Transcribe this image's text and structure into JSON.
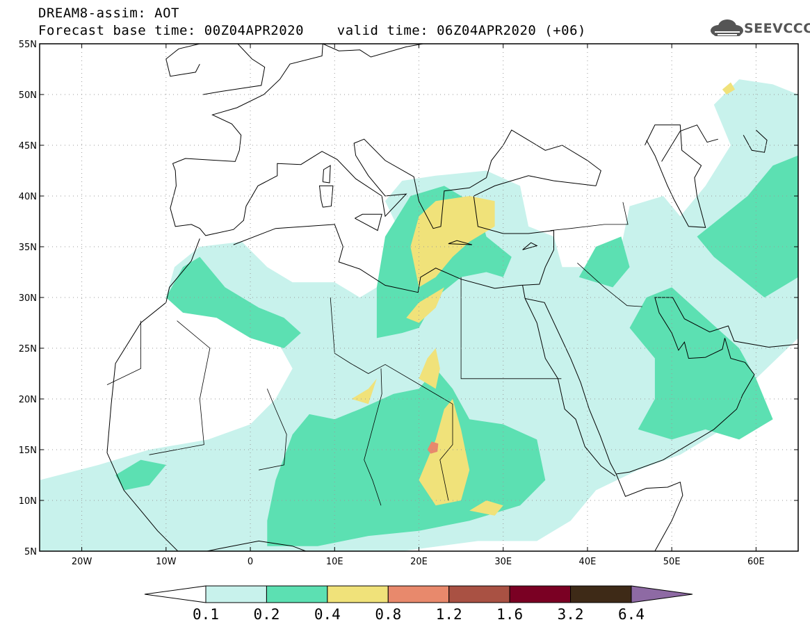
{
  "header": {
    "line1": "DREAM8-assim: AOT",
    "line2": "Forecast base time: 00Z04APR2020    valid time: 06Z04APR2020 (+06)"
  },
  "logo": {
    "text": "SEEVCCC",
    "icon": "cloud-logo-icon",
    "color": "#555555"
  },
  "map": {
    "lon_range": [
      -25,
      65
    ],
    "lat_range": [
      5,
      55
    ],
    "lon_ticks": [
      {
        "value": -20,
        "label": "20W"
      },
      {
        "value": -10,
        "label": "10W"
      },
      {
        "value": 0,
        "label": "0"
      },
      {
        "value": 10,
        "label": "10E"
      },
      {
        "value": 20,
        "label": "20E"
      },
      {
        "value": 30,
        "label": "30E"
      },
      {
        "value": 40,
        "label": "40E"
      },
      {
        "value": 50,
        "label": "50E"
      },
      {
        "value": 60,
        "label": "60E"
      }
    ],
    "lat_ticks": [
      {
        "value": 5,
        "label": "5N"
      },
      {
        "value": 10,
        "label": "10N"
      },
      {
        "value": 15,
        "label": "15N"
      },
      {
        "value": 20,
        "label": "20N"
      },
      {
        "value": 25,
        "label": "25N"
      },
      {
        "value": 30,
        "label": "30N"
      },
      {
        "value": 35,
        "label": "35N"
      },
      {
        "value": 40,
        "label": "40N"
      },
      {
        "value": 45,
        "label": "45N"
      },
      {
        "value": 50,
        "label": "50N"
      },
      {
        "value": 55,
        "label": "55N"
      }
    ],
    "grid": "dotted",
    "fields": [
      {
        "level": "0.1-0.2",
        "color": "#c8f2ec",
        "polys": [
          [
            [
              -25,
              12
            ],
            [
              -18,
              13.5
            ],
            [
              -12,
              15
            ],
            [
              -5,
              16
            ],
            [
              0,
              17.5
            ],
            [
              3,
              20
            ],
            [
              5,
              23
            ],
            [
              3,
              26
            ],
            [
              -2,
              27.5
            ],
            [
              -7,
              29
            ],
            [
              -10,
              30
            ],
            [
              -9,
              33
            ],
            [
              -6,
              35
            ],
            [
              -1,
              35.5
            ],
            [
              2,
              33
            ],
            [
              5,
              31.5
            ],
            [
              10,
              31.5
            ],
            [
              13,
              30
            ],
            [
              16,
              31.5
            ],
            [
              18,
              36
            ],
            [
              16,
              39.5
            ],
            [
              18,
              41.5
            ],
            [
              22,
              42
            ],
            [
              28,
              42.5
            ],
            [
              32,
              41
            ],
            [
              33,
              37
            ],
            [
              36,
              36
            ],
            [
              37,
              33
            ],
            [
              40,
              33
            ],
            [
              44,
              35
            ],
            [
              45,
              39
            ],
            [
              49,
              40
            ],
            [
              51,
              38
            ],
            [
              54,
              41
            ],
            [
              57,
              45
            ],
            [
              55,
              49
            ],
            [
              58,
              51.5
            ],
            [
              62,
              51
            ],
            [
              65,
              50
            ],
            [
              65,
              26
            ],
            [
              60,
              22
            ],
            [
              56,
              17
            ],
            [
              51,
              14.5
            ],
            [
              46,
              13
            ],
            [
              41,
              11
            ],
            [
              38,
              8
            ],
            [
              34,
              6
            ],
            [
              27,
              6
            ],
            [
              18,
              5
            ],
            [
              10,
              5
            ],
            [
              -25,
              5
            ]
          ],
          [
            [
              38,
              24
            ],
            [
              43,
              27
            ],
            [
              46,
              25
            ],
            [
              42,
              22
            ],
            [
              39,
              21
            ]
          ]
        ]
      },
      {
        "level": "0.2-0.4",
        "color": "#5ce0b2",
        "polys": [
          [
            [
              2,
              5.5
            ],
            [
              8,
              5.5
            ],
            [
              14,
              6.5
            ],
            [
              20,
              7
            ],
            [
              26,
              8
            ],
            [
              32,
              9.5
            ],
            [
              35,
              12
            ],
            [
              34,
              16
            ],
            [
              30,
              17.5
            ],
            [
              26,
              18
            ],
            [
              24,
              21
            ],
            [
              22,
              23
            ],
            [
              20,
              21
            ],
            [
              17,
              20.5
            ],
            [
              13,
              19
            ],
            [
              10,
              18
            ],
            [
              7,
              18.5
            ],
            [
              5,
              16.5
            ],
            [
              3,
              12
            ],
            [
              2,
              8
            ]
          ],
          [
            [
              15,
              26
            ],
            [
              18,
              26.5
            ],
            [
              20,
              27
            ],
            [
              22,
              30
            ],
            [
              25,
              32
            ],
            [
              28,
              32.5
            ],
            [
              30,
              32
            ],
            [
              31,
              34
            ],
            [
              28,
              36
            ],
            [
              27,
              39
            ],
            [
              23,
              41
            ],
            [
              19,
              40
            ],
            [
              16,
              36
            ],
            [
              15,
              31
            ]
          ],
          [
            [
              -10,
              30
            ],
            [
              -8,
              33
            ],
            [
              -6,
              34
            ],
            [
              -3,
              31
            ],
            [
              1,
              29
            ],
            [
              4,
              28
            ],
            [
              6,
              26.5
            ],
            [
              4,
              25
            ],
            [
              0,
              26
            ],
            [
              -4,
              28
            ],
            [
              -8,
              28.5
            ]
          ],
          [
            [
              46,
              17
            ],
            [
              48,
              20
            ],
            [
              48,
              24
            ],
            [
              45,
              27
            ],
            [
              47,
              30
            ],
            [
              50,
              31
            ],
            [
              54,
              28
            ],
            [
              58,
              25
            ],
            [
              60,
              22
            ],
            [
              62,
              18
            ],
            [
              58,
              16
            ],
            [
              54,
              17
            ],
            [
              50,
              16
            ]
          ],
          [
            [
              53,
              36
            ],
            [
              56,
              38
            ],
            [
              59,
              40
            ],
            [
              62,
              43
            ],
            [
              65,
              44
            ],
            [
              65,
              32
            ],
            [
              61,
              30
            ],
            [
              58,
              32
            ],
            [
              55,
              34
            ]
          ],
          [
            [
              39,
              32
            ],
            [
              41,
              35
            ],
            [
              44,
              36
            ],
            [
              45,
              33
            ],
            [
              43,
              31
            ]
          ],
          [
            [
              -16,
              12.5
            ],
            [
              -13,
              14
            ],
            [
              -10,
              13.5
            ],
            [
              -12,
              11.5
            ],
            [
              -15,
              11
            ]
          ]
        ]
      },
      {
        "level": "0.4-0.8",
        "color": "#f0e27a",
        "polys": [
          [
            [
              19,
              35
            ],
            [
              20,
              38
            ],
            [
              22,
              39.5
            ],
            [
              26,
              40
            ],
            [
              29,
              39.5
            ],
            [
              29,
              37
            ],
            [
              26,
              35.5
            ],
            [
              24,
              34
            ],
            [
              22,
              32
            ],
            [
              20,
              31
            ]
          ],
          [
            [
              18.5,
              28
            ],
            [
              20,
              29.5
            ],
            [
              22,
              30.5
            ],
            [
              23,
              31
            ],
            [
              22,
              29
            ],
            [
              20,
              27.5
            ]
          ],
          [
            [
              20,
              12
            ],
            [
              22,
              16
            ],
            [
              23,
              19
            ],
            [
              24,
              20
            ],
            [
              25,
              17
            ],
            [
              26,
              13
            ],
            [
              25,
              10
            ],
            [
              22,
              9.5
            ]
          ],
          [
            [
              20,
              22
            ],
            [
              21,
              24
            ],
            [
              22,
              25
            ],
            [
              22.5,
              23
            ],
            [
              22,
              21
            ]
          ],
          [
            [
              12,
              20
            ],
            [
              14,
              21
            ],
            [
              15,
              22
            ],
            [
              14,
              19.5
            ]
          ],
          [
            [
              26,
              9
            ],
            [
              28,
              10
            ],
            [
              30,
              9.5
            ],
            [
              29,
              8.5
            ]
          ],
          [
            [
              56,
              50.5
            ],
            [
              57,
              51.2
            ],
            [
              57.5,
              50.5
            ],
            [
              56.5,
              50
            ]
          ]
        ]
      },
      {
        "level": "0.8-1.2",
        "color": "#e8896c",
        "polys": [
          [
            [
              21,
              15
            ],
            [
              21.5,
              15.8
            ],
            [
              22.3,
              15.6
            ],
            [
              22.2,
              14.8
            ],
            [
              21.4,
              14.6
            ]
          ]
        ]
      }
    ]
  },
  "colorbar": {
    "colors": [
      "#ffffff",
      "#c8f2ec",
      "#5ce0b2",
      "#f0e27a",
      "#e8896c",
      "#a95143",
      "#7a0023",
      "#3e2a17",
      "#8e6aa4"
    ],
    "labels": [
      "0.1",
      "0.2",
      "0.4",
      "0.8",
      "1.2",
      "1.6",
      "3.2",
      "6.4"
    ]
  }
}
